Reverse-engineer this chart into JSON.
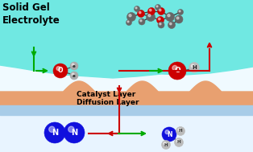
{
  "gel_color": "#70e8e2",
  "bg_white": "#ffffff",
  "catalyst_color": "#e8a070",
  "diffusion_color": "#a8cce8",
  "below_color": "#e8f4ff",
  "text_solid_gel": "Solid Gel\nElectrolyte",
  "text_catalyst": "Catalyst Layer",
  "text_diffusion": "Diffusion Layer",
  "arrow_green": "#00aa00",
  "arrow_red": "#cc0000",
  "N_color": "#1010dd",
  "O_color": "#cc0000",
  "H_color": "#bbbbbb",
  "C_color": "#666666",
  "figsize": [
    3.14,
    1.89
  ],
  "dpi": 100
}
